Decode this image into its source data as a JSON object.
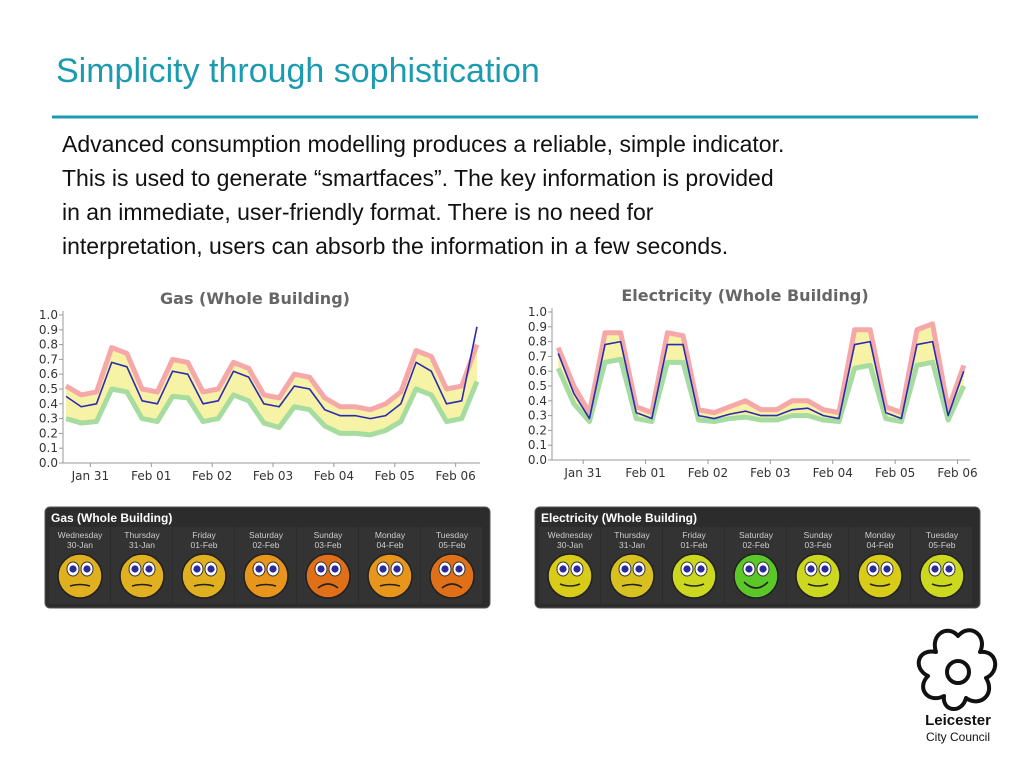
{
  "slide": {
    "title": "Simplicity through sophistication",
    "body": [
      "Advanced consumption modelling produces a reliable, simple indicator.",
      "This is used to generate “smartfaces”. The key information is provided",
      "in an immediate, user-friendly format. There is no need for",
      "interpretation, users can absorb the information in a few seconds."
    ],
    "logo": [
      "Leicester",
      "City Council"
    ]
  },
  "chart_data": [
    {
      "type": "line",
      "title": "Gas (Whole Building)",
      "x": [
        0.6,
        0.85,
        1.1,
        1.35,
        1.6,
        1.85,
        2.1,
        2.35,
        2.6,
        2.85,
        3.1,
        3.35,
        3.6,
        3.85,
        4.1,
        4.35,
        4.6,
        4.85,
        5.1,
        5.35,
        5.6,
        5.85,
        6.1,
        6.35,
        6.6,
        6.85,
        7.1,
        7.35
      ],
      "series": [
        {
          "color": "#f6a8a8",
          "values": [
            0.52,
            0.46,
            0.48,
            0.78,
            0.74,
            0.5,
            0.48,
            0.7,
            0.68,
            0.48,
            0.5,
            0.68,
            0.64,
            0.46,
            0.44,
            0.6,
            0.58,
            0.44,
            0.38,
            0.38,
            0.36,
            0.4,
            0.48,
            0.76,
            0.72,
            0.5,
            0.52,
            0.8
          ]
        },
        {
          "color": "#a6dca0",
          "values": [
            0.3,
            0.27,
            0.28,
            0.5,
            0.48,
            0.3,
            0.28,
            0.45,
            0.44,
            0.28,
            0.3,
            0.46,
            0.42,
            0.27,
            0.24,
            0.38,
            0.36,
            0.25,
            0.2,
            0.2,
            0.19,
            0.22,
            0.28,
            0.5,
            0.46,
            0.28,
            0.3,
            0.55
          ]
        },
        {
          "color": "#2b2bb0",
          "values": [
            0.45,
            0.38,
            0.4,
            0.68,
            0.65,
            0.42,
            0.4,
            0.62,
            0.6,
            0.4,
            0.42,
            0.62,
            0.58,
            0.4,
            0.38,
            0.52,
            0.5,
            0.36,
            0.32,
            0.32,
            0.3,
            0.32,
            0.4,
            0.68,
            0.62,
            0.4,
            0.42,
            0.92
          ]
        }
      ],
      "xlim": [
        0.55,
        7.4
      ],
      "ylim": [
        0,
        1
      ],
      "xticks": [
        {
          "value": 1,
          "label": "Jan 31"
        },
        {
          "value": 2,
          "label": "Feb 01"
        },
        {
          "value": 3,
          "label": "Feb 02"
        },
        {
          "value": 4,
          "label": "Feb 03"
        },
        {
          "value": 5,
          "label": "Feb 04"
        },
        {
          "value": 6,
          "label": "Feb 05"
        },
        {
          "value": 7,
          "label": "Feb 06"
        }
      ],
      "yticks": [
        {
          "value": 0,
          "label": "0.0"
        },
        0.1,
        0.2,
        0.3,
        0.4,
        0.5,
        0.6,
        0.7,
        0.8,
        0.9,
        {
          "value": 1,
          "label": "1.0"
        }
      ]
    },
    {
      "type": "line",
      "title": "Electricity (Whole Building)",
      "x": [
        0.6,
        0.85,
        1.1,
        1.35,
        1.6,
        1.85,
        2.1,
        2.35,
        2.6,
        2.85,
        3.1,
        3.35,
        3.6,
        3.85,
        4.1,
        4.35,
        4.6,
        4.85,
        5.1,
        5.35,
        5.6,
        5.85,
        6.1,
        6.35,
        6.6,
        6.85,
        7.1
      ],
      "series": [
        {
          "color": "#f6a8a8",
          "values": [
            0.76,
            0.5,
            0.32,
            0.86,
            0.86,
            0.36,
            0.32,
            0.86,
            0.84,
            0.34,
            0.32,
            0.36,
            0.4,
            0.34,
            0.34,
            0.4,
            0.4,
            0.34,
            0.32,
            0.88,
            0.88,
            0.36,
            0.32,
            0.88,
            0.92,
            0.34,
            0.64
          ]
        },
        {
          "color": "#a6dca0",
          "values": [
            0.62,
            0.38,
            0.26,
            0.66,
            0.68,
            0.28,
            0.26,
            0.66,
            0.66,
            0.27,
            0.26,
            0.28,
            0.29,
            0.27,
            0.27,
            0.3,
            0.3,
            0.27,
            0.26,
            0.62,
            0.64,
            0.28,
            0.26,
            0.64,
            0.66,
            0.27,
            0.5
          ]
        },
        {
          "color": "#2b2bb0",
          "values": [
            0.72,
            0.45,
            0.28,
            0.78,
            0.8,
            0.32,
            0.28,
            0.78,
            0.78,
            0.3,
            0.28,
            0.31,
            0.33,
            0.3,
            0.3,
            0.34,
            0.35,
            0.3,
            0.28,
            0.78,
            0.8,
            0.32,
            0.28,
            0.78,
            0.8,
            0.3,
            0.6
          ]
        }
      ],
      "xlim": [
        0.5,
        7.2
      ],
      "ylim": [
        0,
        1
      ],
      "xticks": [
        {
          "value": 1,
          "label": "Jan 31"
        },
        {
          "value": 2,
          "label": "Feb 01"
        },
        {
          "value": 3,
          "label": "Feb 02"
        },
        {
          "value": 4,
          "label": "Feb 03"
        },
        {
          "value": 5,
          "label": "Feb 04"
        },
        {
          "value": 6,
          "label": "Feb 05"
        },
        {
          "value": 7,
          "label": "Feb 06"
        }
      ],
      "yticks": [
        {
          "value": 0,
          "label": "0.0"
        },
        0.1,
        0.2,
        0.3,
        0.4,
        0.5,
        0.6,
        0.7,
        0.8,
        0.9,
        {
          "value": 1,
          "label": "1.0"
        }
      ]
    }
  ],
  "panels": [
    {
      "title": "Gas (Whole Building)",
      "days": [
        {
          "day": "Wednesday",
          "date": "30-Jan",
          "color": "#e0b020",
          "mood": "neutral"
        },
        {
          "day": "Thursday",
          "date": "31-Jan",
          "color": "#e0b020",
          "mood": "neutral"
        },
        {
          "day": "Friday",
          "date": "01-Feb",
          "color": "#e0b020",
          "mood": "neutral"
        },
        {
          "day": "Saturday",
          "date": "02-Feb",
          "color": "#e8951c",
          "mood": "neutral"
        },
        {
          "day": "Sunday",
          "date": "03-Feb",
          "color": "#e07018",
          "mood": "frown"
        },
        {
          "day": "Monday",
          "date": "04-Feb",
          "color": "#e8951c",
          "mood": "neutral"
        },
        {
          "day": "Tuesday",
          "date": "05-Feb",
          "color": "#e07018",
          "mood": "frown"
        }
      ]
    },
    {
      "title": "Electricity (Whole Building)",
      "days": [
        {
          "day": "Wednesday",
          "date": "30-Jan",
          "color": "#d8cc18",
          "mood": "smile"
        },
        {
          "day": "Thursday",
          "date": "31-Jan",
          "color": "#d8c020",
          "mood": "neutral"
        },
        {
          "day": "Friday",
          "date": "01-Feb",
          "color": "#ccd820",
          "mood": "smile"
        },
        {
          "day": "Saturday",
          "date": "02-Feb",
          "color": "#5cc828",
          "mood": "grin"
        },
        {
          "day": "Sunday",
          "date": "03-Feb",
          "color": "#ccd820",
          "mood": "smile"
        },
        {
          "day": "Monday",
          "date": "04-Feb",
          "color": "#d8cc18",
          "mood": "smile"
        },
        {
          "day": "Tuesday",
          "date": "05-Feb",
          "color": "#ccd820",
          "mood": "smile"
        }
      ]
    }
  ]
}
